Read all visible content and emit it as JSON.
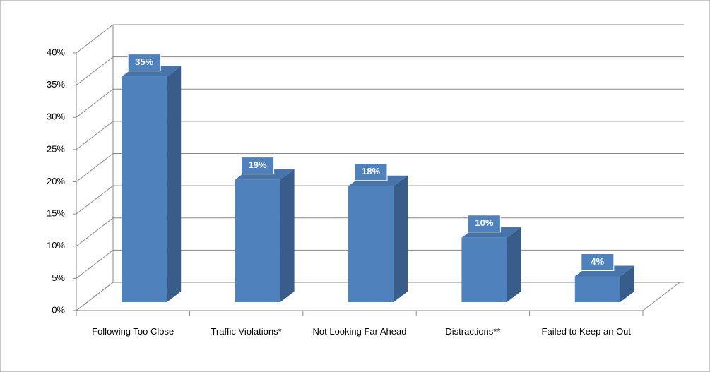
{
  "chart_data": {
    "type": "bar3d",
    "categories": [
      "Following Too Close",
      "Traffic Violations*",
      "Not Looking Far Ahead",
      "Distractions**",
      "Failed to Keep an Out"
    ],
    "values": [
      35,
      19,
      18,
      10,
      4
    ],
    "value_labels": [
      "35%",
      "19%",
      "18%",
      "10%",
      "4%"
    ],
    "color": "#4f81bd",
    "ylim": [
      0,
      40
    ],
    "yticks": [
      {
        "value": 0,
        "label": "0%"
      },
      {
        "value": 5,
        "label": "5%"
      },
      {
        "value": 10,
        "label": "10%"
      },
      {
        "value": 15,
        "label": "15%"
      },
      {
        "value": 20,
        "label": "20%"
      },
      {
        "value": 25,
        "label": "25%"
      },
      {
        "value": 30,
        "label": "30%"
      },
      {
        "value": 35,
        "label": "35%"
      },
      {
        "value": 40,
        "label": "40%"
      }
    ],
    "grid": true
  }
}
